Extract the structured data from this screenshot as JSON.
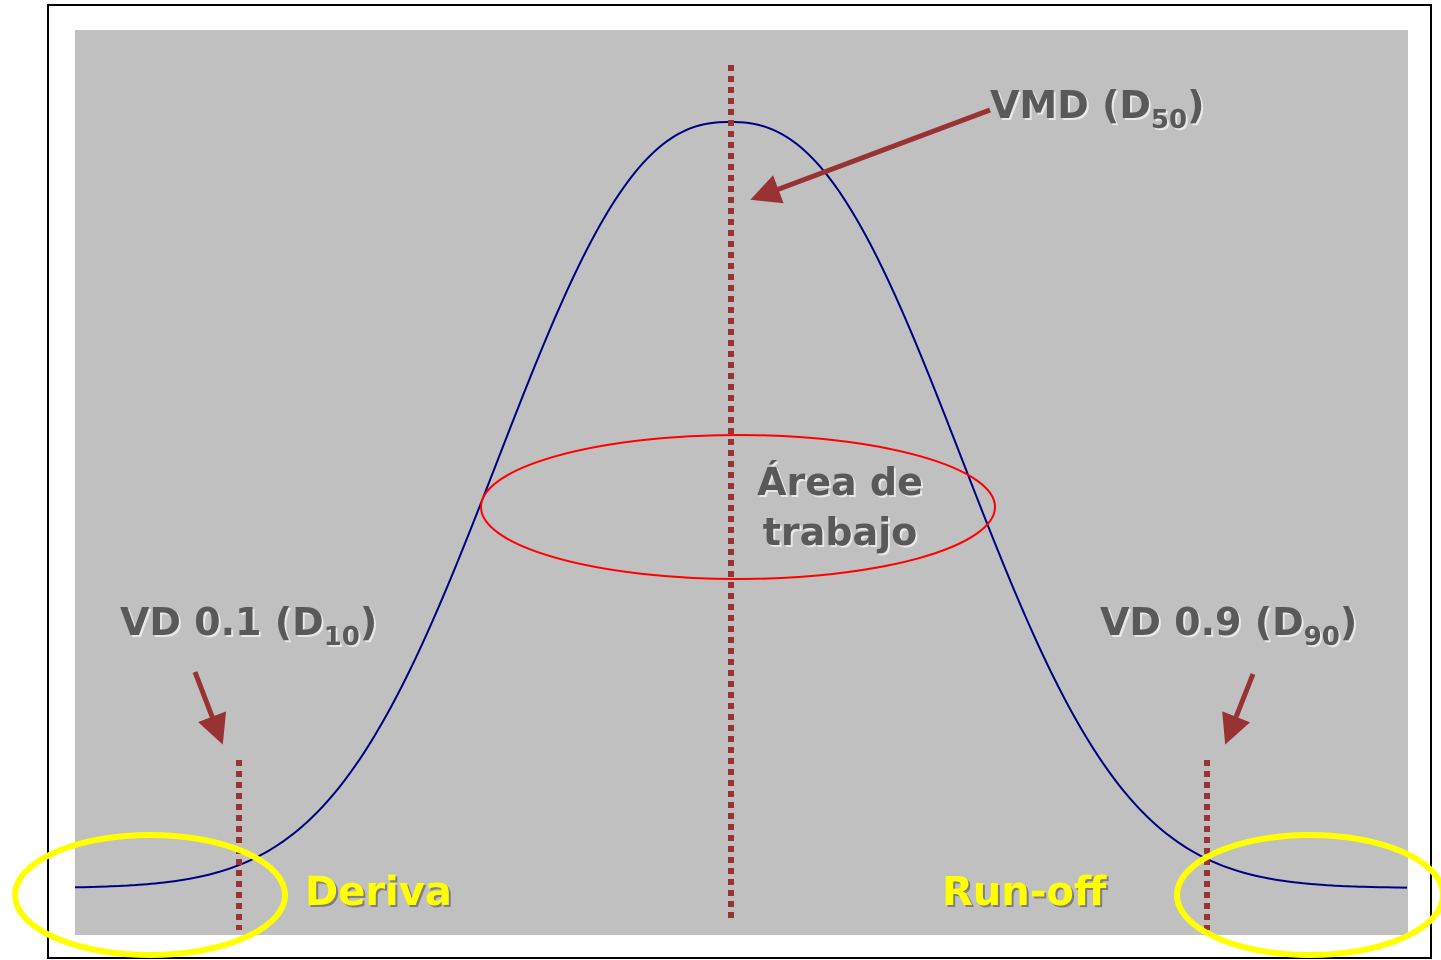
{
  "labels": {
    "vmd": {
      "text": "VMD (D",
      "sub": "50",
      "end": ")"
    },
    "d10": {
      "text": "VD 0.1 (D",
      "sub": "10",
      "end": ")"
    },
    "d90": {
      "text": "VD 0.9 (D",
      "sub": "90",
      "end": ")"
    },
    "work_area": {
      "lines": [
        "Área de",
        "trabajo"
      ]
    },
    "drift": "Deriva",
    "runoff": "Run-off"
  }
}
